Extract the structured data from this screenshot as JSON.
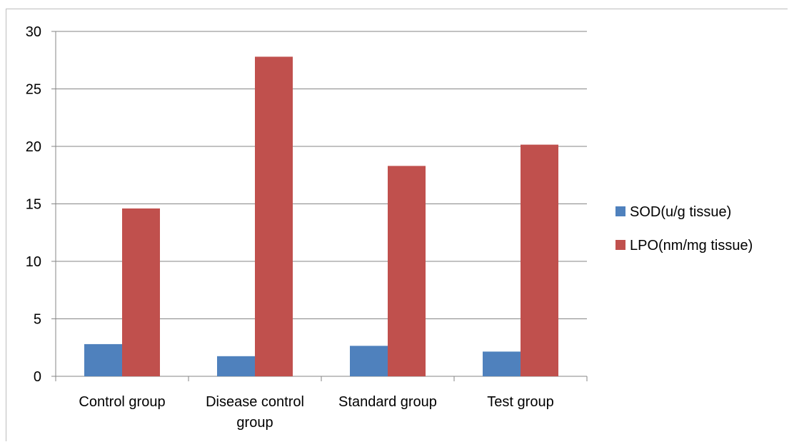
{
  "chart_data": {
    "type": "bar",
    "categories": [
      [
        "Control group"
      ],
      [
        "Disease control",
        "group"
      ],
      [
        "Standard group"
      ],
      [
        "Test group"
      ]
    ],
    "series": [
      {
        "name": "SOD(u/g tissue)",
        "color": "#4f81bd",
        "values": [
          2.8,
          1.75,
          2.65,
          2.15
        ]
      },
      {
        "name": "LPO(nm/mg tissue)",
        "color": "#c0504d",
        "values": [
          14.6,
          27.8,
          18.3,
          20.15
        ]
      }
    ],
    "title": "",
    "xlabel": "",
    "ylabel": "",
    "ylim": [
      0,
      30
    ],
    "yticks": [
      "0",
      "5",
      "10",
      "15",
      "20",
      "25",
      "30"
    ],
    "grid": true,
    "legend_position": "right"
  }
}
